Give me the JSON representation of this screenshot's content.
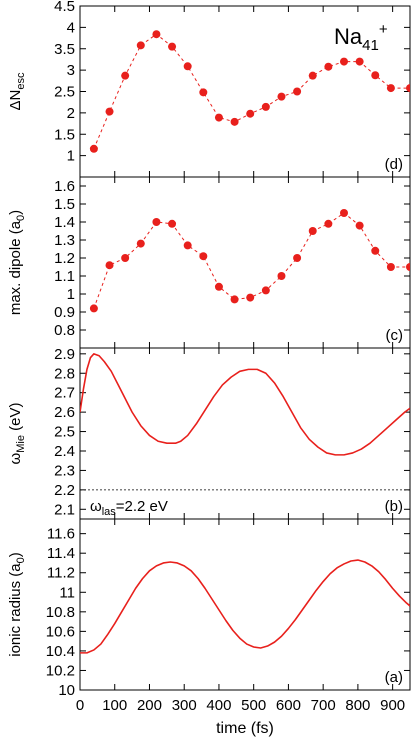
{
  "figure": {
    "annotation_main": "Na",
    "annotation_sub": "41",
    "annotation_sup": "+",
    "xlabel": "time (fs)",
    "xlim": [
      0,
      950
    ],
    "x_ticks": [
      "0",
      "100",
      "200",
      "300",
      "400",
      "500",
      "600",
      "700",
      "800",
      "900"
    ],
    "x_tick_values": [
      0,
      100,
      200,
      300,
      400,
      500,
      600,
      700,
      800,
      900
    ]
  },
  "chart_data": [
    {
      "type": "scatter",
      "panel_label": "(d)",
      "ylabel_main": "ΔN",
      "ylabel_sub": "esc",
      "ylabel_after": "",
      "ylim": [
        0.5,
        4.5
      ],
      "y_ticks": [
        "1",
        "1.5",
        "2",
        "2.5",
        "3",
        "3.5",
        "4",
        "4.5"
      ],
      "y_tick_values": [
        1,
        1.5,
        2,
        2.5,
        3,
        3.5,
        4,
        4.5
      ],
      "color": "#e8201c",
      "dashed_line": true,
      "x": [
        40,
        85,
        130,
        175,
        220,
        265,
        310,
        355,
        400,
        445,
        490,
        535,
        580,
        625,
        670,
        715,
        760,
        805,
        850,
        895,
        950
      ],
      "y": [
        1.16,
        2.03,
        2.87,
        3.58,
        3.84,
        3.55,
        3.09,
        2.48,
        1.89,
        1.79,
        1.98,
        2.14,
        2.38,
        2.5,
        2.87,
        3.08,
        3.2,
        3.2,
        2.88,
        2.58,
        2.58
      ]
    },
    {
      "type": "scatter",
      "panel_label": "(c)",
      "ylabel_main": "max. dipole (a",
      "ylabel_sub": "0",
      "ylabel_after": ")",
      "ylim": [
        0.7,
        1.65
      ],
      "y_ticks": [
        "0.8",
        "0.9",
        "1",
        "1.1",
        "1.2",
        "1.3",
        "1.4",
        "1.5",
        "1.6"
      ],
      "y_tick_values": [
        0.8,
        0.9,
        1.0,
        1.1,
        1.2,
        1.3,
        1.4,
        1.5,
        1.6
      ],
      "color": "#e8201c",
      "dashed_line": true,
      "x": [
        40,
        85,
        130,
        175,
        220,
        265,
        310,
        355,
        400,
        445,
        490,
        535,
        580,
        625,
        670,
        715,
        760,
        805,
        850,
        895,
        950
      ],
      "y": [
        0.92,
        1.16,
        1.2,
        1.28,
        1.4,
        1.39,
        1.27,
        1.21,
        1.04,
        0.97,
        0.98,
        1.02,
        1.1,
        1.2,
        1.35,
        1.39,
        1.45,
        1.38,
        1.24,
        1.15,
        1.15
      ]
    },
    {
      "type": "line",
      "panel_label": "(b)",
      "ylabel_main": "ω",
      "ylabel_sub": "Mie",
      "ylabel_after": " (eV)",
      "ylim": [
        2.05,
        2.93
      ],
      "y_ticks": [
        "2.1",
        "2.2",
        "2.3",
        "2.4",
        "2.5",
        "2.6",
        "2.7",
        "2.8",
        "2.9"
      ],
      "y_tick_values": [
        2.1,
        2.2,
        2.3,
        2.4,
        2.5,
        2.6,
        2.7,
        2.8,
        2.9
      ],
      "color": "#e8201c",
      "x": [
        0,
        10,
        20,
        30,
        40,
        55,
        70,
        90,
        110,
        130,
        150,
        175,
        200,
        225,
        250,
        275,
        290,
        310,
        335,
        360,
        385,
        410,
        435,
        460,
        485,
        510,
        535,
        560,
        585,
        610,
        635,
        660,
        685,
        710,
        735,
        760,
        785,
        810,
        835,
        860,
        885,
        910,
        935,
        950
      ],
      "y": [
        2.6,
        2.72,
        2.82,
        2.88,
        2.9,
        2.89,
        2.86,
        2.81,
        2.74,
        2.67,
        2.6,
        2.53,
        2.48,
        2.45,
        2.44,
        2.44,
        2.45,
        2.48,
        2.54,
        2.61,
        2.68,
        2.74,
        2.78,
        2.81,
        2.82,
        2.82,
        2.8,
        2.75,
        2.68,
        2.6,
        2.52,
        2.46,
        2.42,
        2.39,
        2.38,
        2.38,
        2.39,
        2.41,
        2.44,
        2.48,
        2.52,
        2.56,
        2.6,
        2.62
      ],
      "reference_line": {
        "y": 2.2,
        "label_main": "ω",
        "label_sub": "las",
        "label_after": "=2.2 eV"
      }
    },
    {
      "type": "line",
      "panel_label": "(a)",
      "ylabel_main": "ionic radius (a",
      "ylabel_sub": "0",
      "ylabel_after": ")",
      "ylim": [
        10.0,
        11.75
      ],
      "y_ticks": [
        "10",
        "10.2",
        "10.4",
        "10.6",
        "10.8",
        "11",
        "11.2",
        "11.4",
        "11.6"
      ],
      "y_tick_values": [
        10.0,
        10.2,
        10.4,
        10.6,
        10.8,
        11.0,
        11.2,
        11.4,
        11.6
      ],
      "color": "#e8201c",
      "x": [
        0,
        20,
        40,
        60,
        80,
        100,
        120,
        140,
        160,
        180,
        200,
        220,
        240,
        260,
        280,
        300,
        320,
        340,
        360,
        380,
        400,
        420,
        440,
        460,
        480,
        500,
        520,
        540,
        560,
        580,
        600,
        620,
        640,
        660,
        680,
        700,
        720,
        740,
        760,
        780,
        800,
        820,
        840,
        860,
        880,
        900,
        920,
        940,
        950
      ],
      "y": [
        10.38,
        10.38,
        10.41,
        10.47,
        10.57,
        10.68,
        10.8,
        10.92,
        11.04,
        11.14,
        11.22,
        11.27,
        11.3,
        11.31,
        11.3,
        11.27,
        11.22,
        11.14,
        11.04,
        10.93,
        10.82,
        10.71,
        10.61,
        10.53,
        10.47,
        10.44,
        10.43,
        10.45,
        10.49,
        10.55,
        10.63,
        10.72,
        10.82,
        10.92,
        11.02,
        11.11,
        11.19,
        11.25,
        11.29,
        11.32,
        11.33,
        11.31,
        11.27,
        11.21,
        11.13,
        11.04,
        10.96,
        10.89,
        10.86
      ]
    }
  ]
}
